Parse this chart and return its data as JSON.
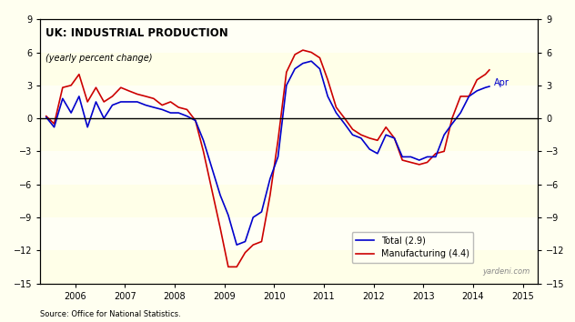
{
  "title_line1": "UK: INDUSTRIAL PRODUCTION",
  "title_line2": "(yearly percent change)",
  "background_color": "#FFFFF0",
  "plot_bg_color": "#FFFFF5",
  "stripe_color": "#FFFFE8",
  "ylim": [
    -15,
    9
  ],
  "yticks": [
    -15,
    -12,
    -9,
    -6,
    -3,
    0,
    3,
    6,
    9
  ],
  "source_text": "Source: Office for National Statistics.",
  "watermark": "yardeni.com",
  "annotation_apr": "Apr",
  "legend_total": "Total (2.9)",
  "legend_manuf": "Manufacturing (4.4)",
  "total_color": "#0000CC",
  "manuf_color": "#CC0000",
  "total_lw": 1.2,
  "manuf_lw": 1.2,
  "xmin": 2005.3,
  "xmax": 2015.3,
  "xtick_years": [
    2006,
    2007,
    2008,
    2009,
    2010,
    2011,
    2012,
    2013,
    2014,
    2015
  ],
  "total_data": [
    [
      2005.42,
      0.1
    ],
    [
      2005.58,
      -0.8
    ],
    [
      2005.75,
      1.8
    ],
    [
      2005.92,
      0.5
    ],
    [
      2006.08,
      2.0
    ],
    [
      2006.25,
      -0.8
    ],
    [
      2006.42,
      1.5
    ],
    [
      2006.58,
      0.0
    ],
    [
      2006.75,
      1.2
    ],
    [
      2006.92,
      1.5
    ],
    [
      2007.08,
      1.5
    ],
    [
      2007.25,
      1.5
    ],
    [
      2007.42,
      1.2
    ],
    [
      2007.58,
      1.0
    ],
    [
      2007.75,
      0.8
    ],
    [
      2007.92,
      0.5
    ],
    [
      2008.08,
      0.5
    ],
    [
      2008.25,
      0.2
    ],
    [
      2008.42,
      -0.2
    ],
    [
      2008.58,
      -2.0
    ],
    [
      2008.75,
      -4.5
    ],
    [
      2008.92,
      -7.0
    ],
    [
      2009.08,
      -8.8
    ],
    [
      2009.25,
      -11.5
    ],
    [
      2009.42,
      -11.2
    ],
    [
      2009.58,
      -9.0
    ],
    [
      2009.75,
      -8.5
    ],
    [
      2009.92,
      -5.5
    ],
    [
      2010.08,
      -3.5
    ],
    [
      2010.25,
      3.0
    ],
    [
      2010.42,
      4.5
    ],
    [
      2010.58,
      5.0
    ],
    [
      2010.75,
      5.2
    ],
    [
      2010.92,
      4.5
    ],
    [
      2011.08,
      2.0
    ],
    [
      2011.25,
      0.5
    ],
    [
      2011.42,
      -0.5
    ],
    [
      2011.58,
      -1.5
    ],
    [
      2011.75,
      -1.8
    ],
    [
      2011.92,
      -2.8
    ],
    [
      2012.08,
      -3.2
    ],
    [
      2012.25,
      -1.5
    ],
    [
      2012.42,
      -1.8
    ],
    [
      2012.58,
      -3.5
    ],
    [
      2012.75,
      -3.5
    ],
    [
      2012.92,
      -3.8
    ],
    [
      2013.08,
      -3.5
    ],
    [
      2013.25,
      -3.5
    ],
    [
      2013.42,
      -1.5
    ],
    [
      2013.58,
      -0.5
    ],
    [
      2013.75,
      0.5
    ],
    [
      2013.92,
      2.0
    ],
    [
      2014.08,
      2.5
    ],
    [
      2014.25,
      2.8
    ],
    [
      2014.33,
      2.9
    ]
  ],
  "manuf_data": [
    [
      2005.42,
      0.2
    ],
    [
      2005.58,
      -0.5
    ],
    [
      2005.75,
      2.8
    ],
    [
      2005.92,
      3.0
    ],
    [
      2006.08,
      4.0
    ],
    [
      2006.25,
      1.5
    ],
    [
      2006.42,
      2.8
    ],
    [
      2006.58,
      1.5
    ],
    [
      2006.75,
      2.0
    ],
    [
      2006.92,
      2.8
    ],
    [
      2007.08,
      2.5
    ],
    [
      2007.25,
      2.2
    ],
    [
      2007.42,
      2.0
    ],
    [
      2007.58,
      1.8
    ],
    [
      2007.75,
      1.2
    ],
    [
      2007.92,
      1.5
    ],
    [
      2008.08,
      1.0
    ],
    [
      2008.25,
      0.8
    ],
    [
      2008.42,
      -0.2
    ],
    [
      2008.58,
      -3.0
    ],
    [
      2008.75,
      -6.5
    ],
    [
      2008.92,
      -10.0
    ],
    [
      2009.08,
      -13.5
    ],
    [
      2009.25,
      -13.5
    ],
    [
      2009.42,
      -12.2
    ],
    [
      2009.58,
      -11.5
    ],
    [
      2009.75,
      -11.2
    ],
    [
      2009.92,
      -7.0
    ],
    [
      2010.08,
      -2.0
    ],
    [
      2010.25,
      4.2
    ],
    [
      2010.42,
      5.8
    ],
    [
      2010.58,
      6.2
    ],
    [
      2010.75,
      6.0
    ],
    [
      2010.92,
      5.5
    ],
    [
      2011.08,
      3.5
    ],
    [
      2011.25,
      1.0
    ],
    [
      2011.42,
      0.0
    ],
    [
      2011.58,
      -1.0
    ],
    [
      2011.75,
      -1.5
    ],
    [
      2011.92,
      -1.8
    ],
    [
      2012.08,
      -2.0
    ],
    [
      2012.25,
      -0.8
    ],
    [
      2012.42,
      -1.8
    ],
    [
      2012.58,
      -3.8
    ],
    [
      2012.75,
      -4.0
    ],
    [
      2012.92,
      -4.2
    ],
    [
      2013.08,
      -4.0
    ],
    [
      2013.25,
      -3.2
    ],
    [
      2013.42,
      -3.0
    ],
    [
      2013.58,
      0.0
    ],
    [
      2013.75,
      2.0
    ],
    [
      2013.92,
      2.0
    ],
    [
      2014.08,
      3.5
    ],
    [
      2014.25,
      4.0
    ],
    [
      2014.33,
      4.4
    ]
  ]
}
